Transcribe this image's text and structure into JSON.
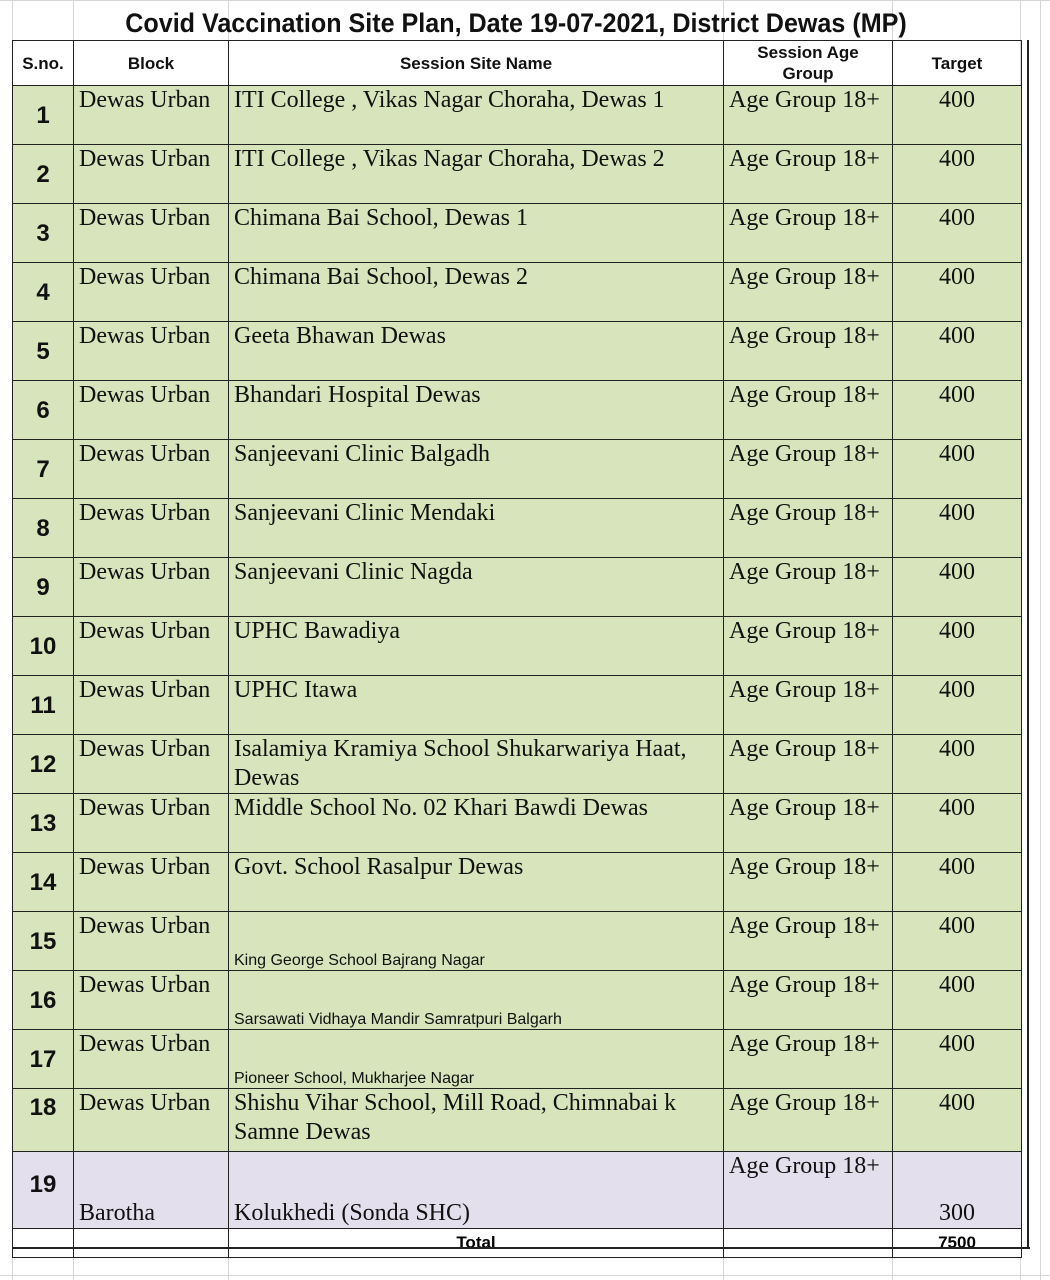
{
  "title": "Covid Vaccination Site Plan, Date 19-07-2021, District Dewas (MP)",
  "headers": [
    "S.no.",
    "Block",
    "Session Site Name",
    "Session Age Group",
    "Target"
  ],
  "colors": {
    "urban_row": "#d8e4bc",
    "barotha_row": "#e4dfec"
  },
  "rows": [
    {
      "sno": "1",
      "block": "Dewas Urban",
      "site": "ITI College , Vikas Nagar Choraha, Dewas 1",
      "age": "Age Group 18+",
      "target": "400"
    },
    {
      "sno": "2",
      "block": "Dewas Urban",
      "site": "ITI College , Vikas Nagar Choraha, Dewas 2",
      "age": "Age Group 18+",
      "target": "400"
    },
    {
      "sno": "3",
      "block": "Dewas Urban",
      "site": "Chimana Bai School, Dewas 1",
      "age": "Age Group 18+",
      "target": "400"
    },
    {
      "sno": "4",
      "block": "Dewas Urban",
      "site": "Chimana Bai School, Dewas 2",
      "age": "Age Group 18+",
      "target": "400"
    },
    {
      "sno": "5",
      "block": "Dewas Urban",
      "site": "Geeta Bhawan Dewas",
      "age": "Age Group 18+",
      "target": "400"
    },
    {
      "sno": "6",
      "block": "Dewas Urban",
      "site": "Bhandari Hospital Dewas",
      "age": "Age Group 18+",
      "target": "400"
    },
    {
      "sno": "7",
      "block": "Dewas Urban",
      "site": "Sanjeevani Clinic Balgadh",
      "age": "Age Group 18+",
      "target": "400"
    },
    {
      "sno": "8",
      "block": "Dewas Urban",
      "site": "Sanjeevani Clinic Mendaki",
      "age": "Age Group 18+",
      "target": "400"
    },
    {
      "sno": "9",
      "block": "Dewas Urban",
      "site": "Sanjeevani Clinic Nagda",
      "age": "Age Group 18+",
      "target": "400"
    },
    {
      "sno": "10",
      "block": "Dewas Urban",
      "site": "UPHC Bawadiya",
      "age": "Age Group 18+",
      "target": "400"
    },
    {
      "sno": "11",
      "block": "Dewas Urban",
      "site": "UPHC Itawa",
      "age": "Age Group 18+",
      "target": "400"
    },
    {
      "sno": "12",
      "block": "Dewas Urban",
      "site": "Isalamiya Kramiya School Shukarwariya Haat, Dewas",
      "age": "Age Group 18+",
      "target": "400"
    },
    {
      "sno": "13",
      "block": "Dewas Urban",
      "site": "Middle School No. 02 Khari Bawdi Dewas",
      "age": "Age Group 18+",
      "target": "400"
    },
    {
      "sno": "14",
      "block": "Dewas Urban",
      "site": "Govt. School Rasalpur Dewas",
      "age": "Age Group 18+",
      "target": "400"
    },
    {
      "sno": "15",
      "block": "Dewas Urban",
      "site": "King George School Bajrang Nagar",
      "age": "Age Group 18+",
      "target": "400"
    },
    {
      "sno": "16",
      "block": "Dewas Urban",
      "site": "Sarsawati Vidhaya Mandir Samratpuri Balgarh",
      "age": "Age Group 18+",
      "target": "400"
    },
    {
      "sno": "17",
      "block": "Dewas Urban",
      "site": "Pioneer School, Mukharjee Nagar",
      "age": "Age Group 18+",
      "target": "400"
    },
    {
      "sno": "18",
      "block": "Dewas Urban",
      "site": "Shishu Vihar School, Mill Road, Chimnabai k Samne Dewas",
      "age": "Age Group 18+",
      "target": "400"
    },
    {
      "sno": "19",
      "block": "Barotha",
      "site": "Kolukhedi (Sonda SHC)",
      "age": "Age Group 18+",
      "target": "300"
    }
  ],
  "total": {
    "label": "Total",
    "value": "7500"
  }
}
